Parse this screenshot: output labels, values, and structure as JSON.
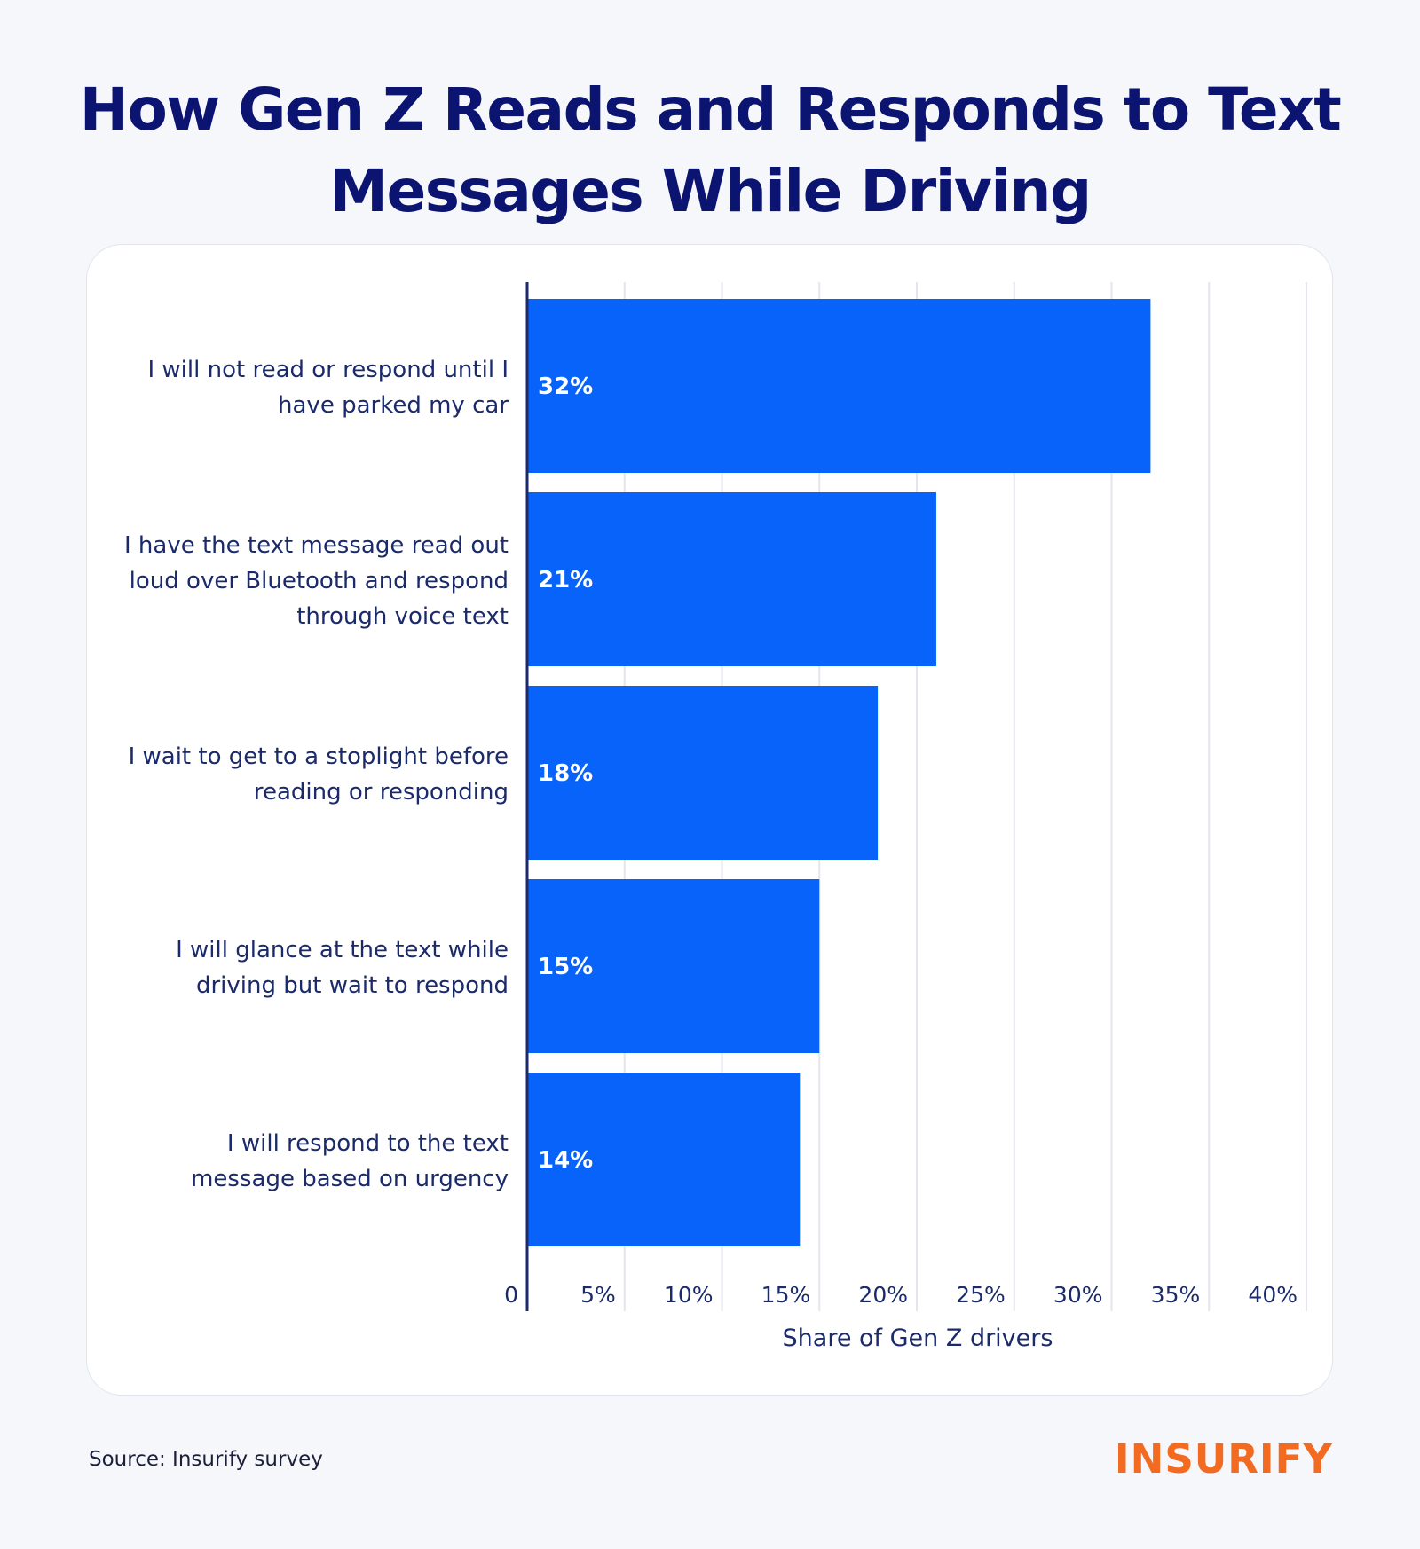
{
  "title_line1": "How Gen Z Reads and Responds to Text",
  "title_line2": "Messages While Driving",
  "source": "Source: Insurify survey",
  "brand": "INSURIFY",
  "colors": {
    "bar": "#0763fa",
    "title": "#0b1470",
    "brand": "#f36a21",
    "grid": "#e3e6ee",
    "axis": "#1b2a6b"
  },
  "chart_data": {
    "type": "bar",
    "orientation": "horizontal",
    "xlabel": "Share of Gen Z drivers",
    "xlim": [
      0,
      40
    ],
    "ticks": [
      0,
      5,
      10,
      15,
      20,
      25,
      30,
      35,
      40
    ],
    "tick_labels": [
      "0",
      "5%",
      "10%",
      "15%",
      "20%",
      "25%",
      "30%",
      "35%",
      "40%"
    ],
    "grid": true,
    "categories": [
      [
        "I will not read or respond until I",
        "have parked my car"
      ],
      [
        "I have the text message read out",
        "loud over Bluetooth and respond",
        "through voice text"
      ],
      [
        "I wait to get to a stoplight before",
        "reading or responding"
      ],
      [
        "I will glance at the text while",
        "driving but wait to respond"
      ],
      [
        "I will respond to the text",
        "message based on urgency"
      ]
    ],
    "values": [
      32,
      21,
      18,
      15,
      14
    ],
    "value_labels": [
      "32%",
      "21%",
      "18%",
      "15%",
      "14%"
    ]
  }
}
